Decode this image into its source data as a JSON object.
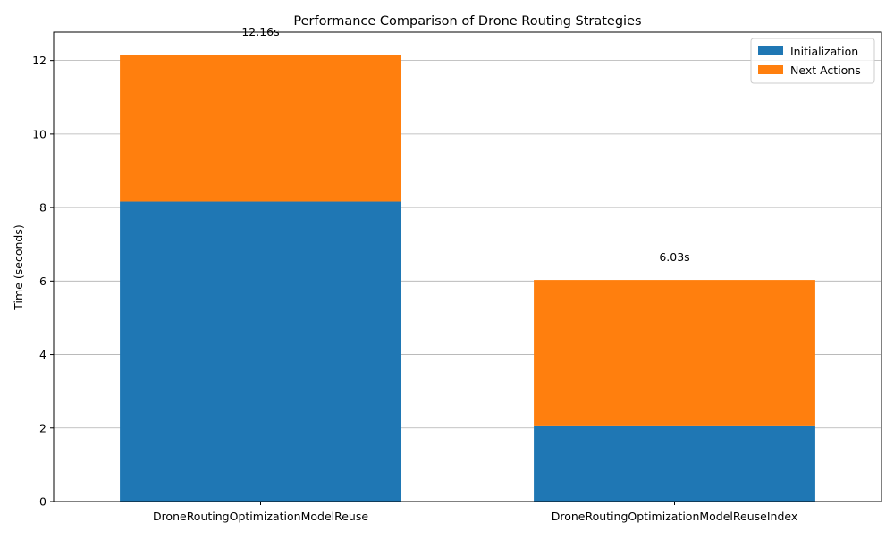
{
  "chart_data": {
    "type": "bar",
    "stacked": true,
    "title": "Performance Comparison of Drone Routing Strategies",
    "xlabel": "",
    "ylabel": "Time (seconds)",
    "categories": [
      "DroneRoutingOptimizationModelReuse",
      "DroneRoutingOptimizationModelReuseIndex"
    ],
    "series": [
      {
        "name": "Initialization",
        "values": [
          8.16,
          2.07
        ],
        "color": "#1f77b4"
      },
      {
        "name": "Next Actions",
        "values": [
          4.0,
          3.96
        ],
        "color": "#ff7f0e"
      }
    ],
    "total_labels": [
      "12.16s",
      "6.03s"
    ],
    "ylim": [
      0,
      12.77
    ],
    "yticks": [
      0,
      2,
      4,
      6,
      8,
      10,
      12
    ],
    "grid": "horizontal",
    "legend_position": "top-right"
  }
}
